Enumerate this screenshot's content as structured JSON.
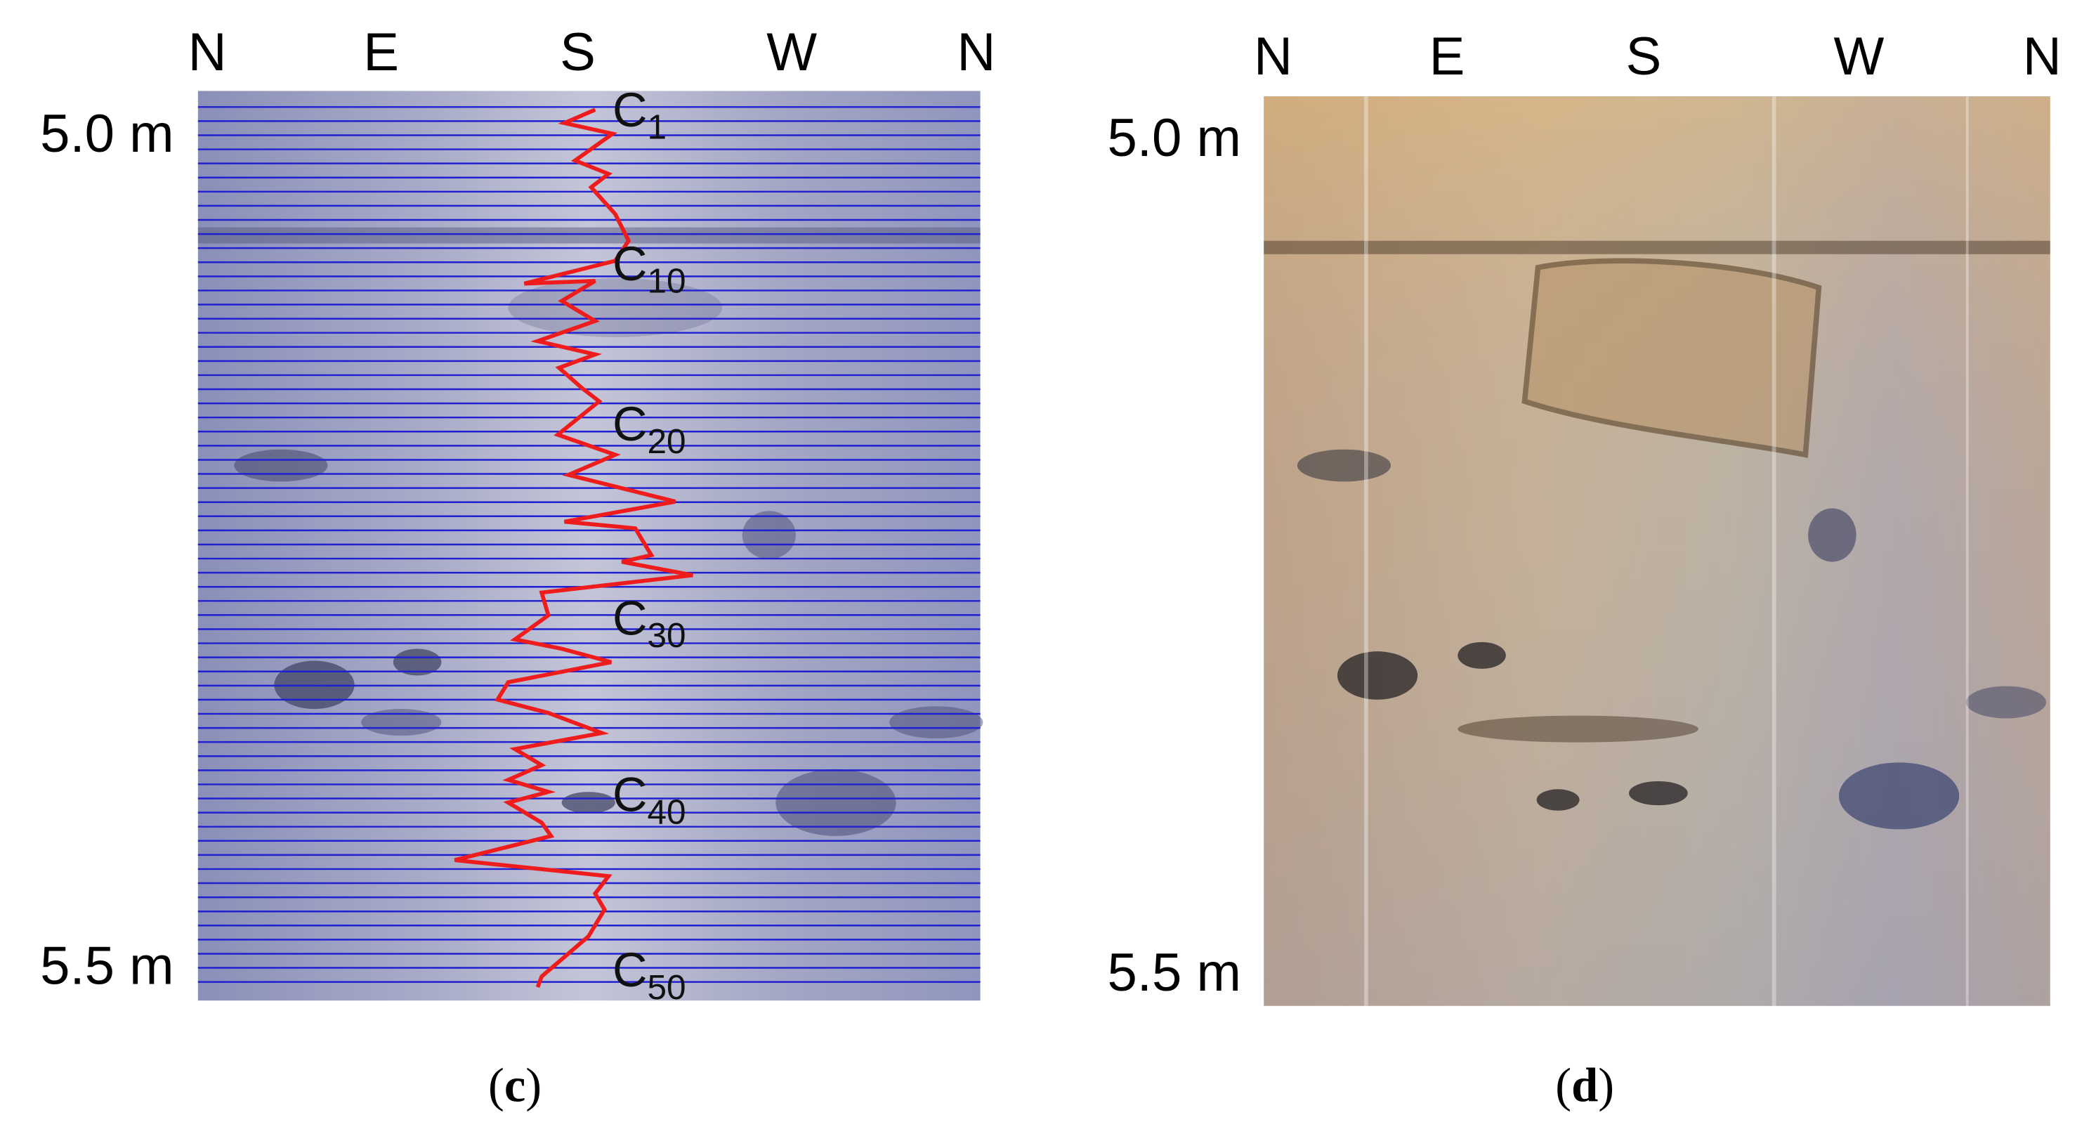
{
  "panels": [
    {
      "compass": [
        "N",
        "E",
        "S",
        "W",
        "N"
      ],
      "depth_top": "5.0 m",
      "depth_bottom": "5.5 m",
      "curve_labels": [
        {
          "base": "C",
          "sub": "1"
        },
        {
          "base": "C",
          "sub": "10"
        },
        {
          "base": "C",
          "sub": "20"
        },
        {
          "base": "C",
          "sub": "30"
        },
        {
          "base": "C",
          "sub": "40"
        },
        {
          "base": "C",
          "sub": "50"
        }
      ],
      "caption": {
        "open": "(",
        "letter": "c",
        "close": ")"
      }
    },
    {
      "compass": [
        "N",
        "E",
        "S",
        "W",
        "N"
      ],
      "depth_top": "5.0 m",
      "depth_bottom": "5.5 m",
      "caption": {
        "open": "(",
        "letter": "d",
        "close": ")"
      }
    }
  ]
}
